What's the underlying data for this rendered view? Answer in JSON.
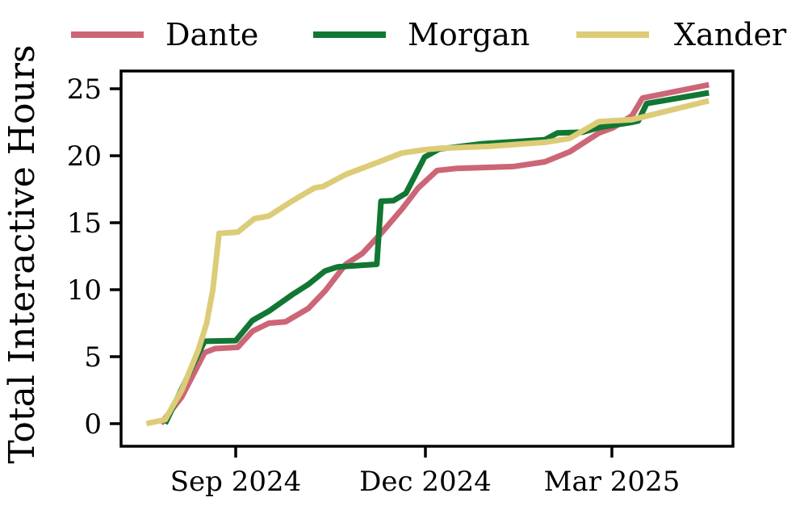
{
  "chart_data": {
    "type": "line",
    "title": "",
    "ylabel": "Total Interactive Hours",
    "xlabel": "",
    "ylim": [
      0,
      25
    ],
    "yticks": [
      0,
      5,
      10,
      15,
      20,
      25
    ],
    "ytick_labels": [
      "0",
      "5",
      "10",
      "15",
      "20",
      "25"
    ],
    "xtick_labels": [
      "Sep 2024",
      "Dec 2024",
      "Mar 2025"
    ],
    "xtick_dates": [
      "2024-09-01",
      "2024-12-01",
      "2025-03-01"
    ],
    "x_range": [
      "2024-07-12",
      "2025-04-29"
    ],
    "grid": false,
    "legend_position": "top-horizontal",
    "axis_color": "#000000",
    "background_color": "#ffffff",
    "series": [
      {
        "name": "Dante",
        "color": "#cc6677",
        "points": [
          [
            "2024-07-27",
            0.0
          ],
          [
            "2024-08-06",
            2.0
          ],
          [
            "2024-08-17",
            5.3
          ],
          [
            "2024-08-22",
            5.6
          ],
          [
            "2024-09-02",
            5.7
          ],
          [
            "2024-09-09",
            6.9
          ],
          [
            "2024-09-17",
            7.5
          ],
          [
            "2024-09-25",
            7.6
          ],
          [
            "2024-10-06",
            8.6
          ],
          [
            "2024-10-14",
            9.9
          ],
          [
            "2024-10-19",
            10.9
          ],
          [
            "2024-10-24",
            11.9
          ],
          [
            "2024-11-01",
            12.7
          ],
          [
            "2024-11-10",
            14.2
          ],
          [
            "2024-11-20",
            16.0
          ],
          [
            "2024-11-28",
            17.6
          ],
          [
            "2024-12-07",
            18.9
          ],
          [
            "2024-12-16",
            19.05
          ],
          [
            "2025-01-13",
            19.2
          ],
          [
            "2025-01-28",
            19.55
          ],
          [
            "2025-02-09",
            20.3
          ],
          [
            "2025-02-23",
            21.7
          ],
          [
            "2025-03-02",
            22.1
          ],
          [
            "2025-03-11",
            23.0
          ],
          [
            "2025-03-16",
            24.3
          ],
          [
            "2025-04-17",
            25.3
          ]
        ]
      },
      {
        "name": "Morgan",
        "color": "#117733",
        "points": [
          [
            "2024-07-29",
            0.0
          ],
          [
            "2024-08-06",
            2.6
          ],
          [
            "2024-08-14",
            5.2
          ],
          [
            "2024-08-17",
            6.15
          ],
          [
            "2024-09-01",
            6.2
          ],
          [
            "2024-09-09",
            7.7
          ],
          [
            "2024-09-17",
            8.4
          ],
          [
            "2024-09-28",
            9.6
          ],
          [
            "2024-10-06",
            10.4
          ],
          [
            "2024-10-14",
            11.4
          ],
          [
            "2024-10-20",
            11.7
          ],
          [
            "2024-11-08",
            11.9
          ],
          [
            "2024-11-10",
            16.6
          ],
          [
            "2024-11-16",
            16.65
          ],
          [
            "2024-11-22",
            17.2
          ],
          [
            "2024-12-01",
            19.9
          ],
          [
            "2024-12-08",
            20.5
          ],
          [
            "2024-12-29",
            20.9
          ],
          [
            "2025-01-28",
            21.2
          ],
          [
            "2025-02-03",
            21.7
          ],
          [
            "2025-02-15",
            21.75
          ],
          [
            "2025-02-23",
            22.1
          ],
          [
            "2025-03-11",
            22.5
          ],
          [
            "2025-03-14",
            22.6
          ],
          [
            "2025-03-18",
            23.9
          ],
          [
            "2025-04-17",
            24.7
          ]
        ]
      },
      {
        "name": "Xander",
        "color": "#ddcc77",
        "points": [
          [
            "2024-07-20",
            0.0
          ],
          [
            "2024-07-29",
            0.3
          ],
          [
            "2024-08-06",
            2.5
          ],
          [
            "2024-08-14",
            5.5
          ],
          [
            "2024-08-18",
            7.5
          ],
          [
            "2024-08-21",
            10.0
          ],
          [
            "2024-08-24",
            14.2
          ],
          [
            "2024-09-02",
            14.3
          ],
          [
            "2024-09-06",
            14.8
          ],
          [
            "2024-09-10",
            15.3
          ],
          [
            "2024-09-17",
            15.5
          ],
          [
            "2024-09-28",
            16.6
          ],
          [
            "2024-10-09",
            17.6
          ],
          [
            "2024-10-13",
            17.7
          ],
          [
            "2024-10-24",
            18.6
          ],
          [
            "2024-11-10",
            19.6
          ],
          [
            "2024-11-20",
            20.2
          ],
          [
            "2024-12-01",
            20.45
          ],
          [
            "2024-12-08",
            20.55
          ],
          [
            "2025-01-01",
            20.7
          ],
          [
            "2025-01-28",
            21.0
          ],
          [
            "2025-02-09",
            21.3
          ],
          [
            "2025-02-23",
            22.55
          ],
          [
            "2025-03-11",
            22.7
          ],
          [
            "2025-04-17",
            24.1
          ]
        ]
      }
    ]
  }
}
